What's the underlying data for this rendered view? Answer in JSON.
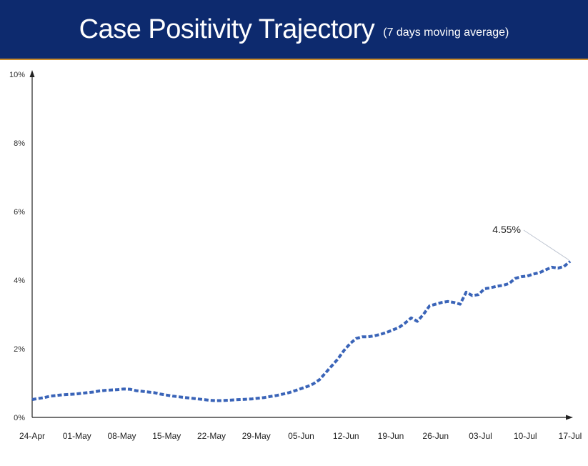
{
  "header": {
    "title": "Case Positivity Trajectory",
    "subtitle": "(7 days moving average)"
  },
  "colors": {
    "header_bg": "#0d2a6e",
    "line": "#3a64b8",
    "axis": "#222222",
    "annotation_leader": "#bfc6d2"
  },
  "chart_data": {
    "type": "line",
    "title": "Case Positivity Trajectory",
    "subtitle": "(7 days moving average)",
    "xlabel": "",
    "ylabel": "",
    "ylim": [
      0,
      10
    ],
    "yticks": [
      "0%",
      "2%",
      "4%",
      "6%",
      "8%",
      "10%"
    ],
    "xticks": [
      "24-Apr",
      "01-May",
      "08-May",
      "15-May",
      "22-May",
      "29-May",
      "05-Jun",
      "12-Jun",
      "19-Jun",
      "26-Jun",
      "03-Jul",
      "10-Jul",
      "17-Jul"
    ],
    "grid": false,
    "line_style": "dashed",
    "series": [
      {
        "values": [
          0.52,
          0.55,
          0.58,
          0.62,
          0.64,
          0.66,
          0.67,
          0.68,
          0.7,
          0.72,
          0.74,
          0.77,
          0.79,
          0.8,
          0.81,
          0.83,
          0.82,
          0.78,
          0.76,
          0.74,
          0.72,
          0.68,
          0.65,
          0.62,
          0.6,
          0.58,
          0.56,
          0.54,
          0.52,
          0.5,
          0.49,
          0.49,
          0.5,
          0.51,
          0.52,
          0.53,
          0.54,
          0.56,
          0.58,
          0.61,
          0.64,
          0.68,
          0.72,
          0.78,
          0.84,
          0.9,
          0.98,
          1.1,
          1.3,
          1.5,
          1.7,
          1.95,
          2.15,
          2.3,
          2.35,
          2.35,
          2.38,
          2.42,
          2.48,
          2.55,
          2.62,
          2.75,
          2.9,
          2.8,
          3.0,
          3.25,
          3.3,
          3.35,
          3.38,
          3.35,
          3.3,
          3.65,
          3.55,
          3.58,
          3.75,
          3.78,
          3.82,
          3.85,
          3.9,
          4.05,
          4.1,
          4.12,
          4.18,
          4.22,
          4.3,
          4.38,
          4.35,
          4.4,
          4.55
        ]
      }
    ],
    "annotations": [
      {
        "text": "4.55%",
        "x": "17-Jul",
        "y": 4.55
      }
    ]
  }
}
